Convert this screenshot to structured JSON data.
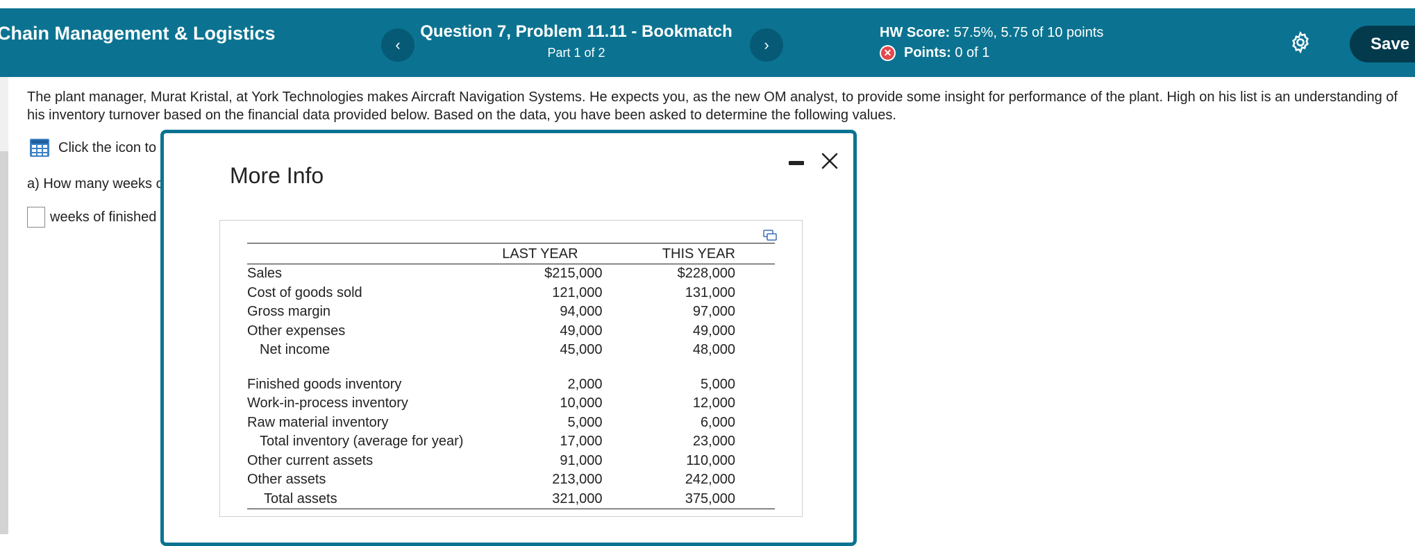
{
  "header": {
    "course_title": "Chain Management & Logistics",
    "prev_label": "‹",
    "next_label": "›",
    "question_title": "Question 7, Problem 11.11 - Bookmatch",
    "question_part": "Part 1 of 2",
    "hw_score_label": "HW Score:",
    "hw_score_value": "57.5%, 5.75 of 10 points",
    "points_label": "Points:",
    "points_value": "0 of 1",
    "save_label": "Save",
    "colors": {
      "bar": "#0b7391",
      "nav": "#065a75",
      "save": "#033a4c",
      "error": "#e5484d"
    }
  },
  "problem": {
    "text": "The plant manager, Murat Kristal, at York Technologies makes Aircraft Navigation Systems. He expects you, as the new OM analyst, to provide some insight for performance of the plant. High on his list is an understanding of his inventory turnover based on the financial data provided below. Based on the data, you have been asked to determine the following values.",
    "click_icon_text": "Click the icon to v",
    "question_a": "a) How many weeks o",
    "answer_suffix": "weeks of finished g"
  },
  "modal": {
    "title": "More Info",
    "table": {
      "headers": [
        "",
        "LAST YEAR",
        "THIS YEAR"
      ],
      "group1": [
        {
          "label": "Sales",
          "last": "$215,000",
          "this": "$228,000"
        },
        {
          "label": "Cost of goods sold",
          "last": "121,000",
          "this": "131,000"
        },
        {
          "label": "Gross margin",
          "last": "94,000",
          "this": "97,000"
        },
        {
          "label": "Other expenses",
          "last": "49,000",
          "this": "49,000"
        },
        {
          "label": "Net income",
          "last": "45,000",
          "this": "48,000"
        }
      ],
      "group2": [
        {
          "label": "Finished goods inventory",
          "last": "2,000",
          "this": "5,000"
        },
        {
          "label": "Work-in-process inventory",
          "last": "10,000",
          "this": "12,000"
        },
        {
          "label": "Raw material inventory",
          "last": "5,000",
          "this": "6,000"
        },
        {
          "label": "Total inventory (average for year)",
          "last": "17,000",
          "this": "23,000"
        },
        {
          "label": "Other current assets",
          "last": "91,000",
          "this": "110,000"
        },
        {
          "label": "Other assets",
          "last": "213,000",
          "this": "242,000"
        },
        {
          "label": "Total assets",
          "last": "321,000",
          "this": "375,000"
        }
      ]
    }
  }
}
